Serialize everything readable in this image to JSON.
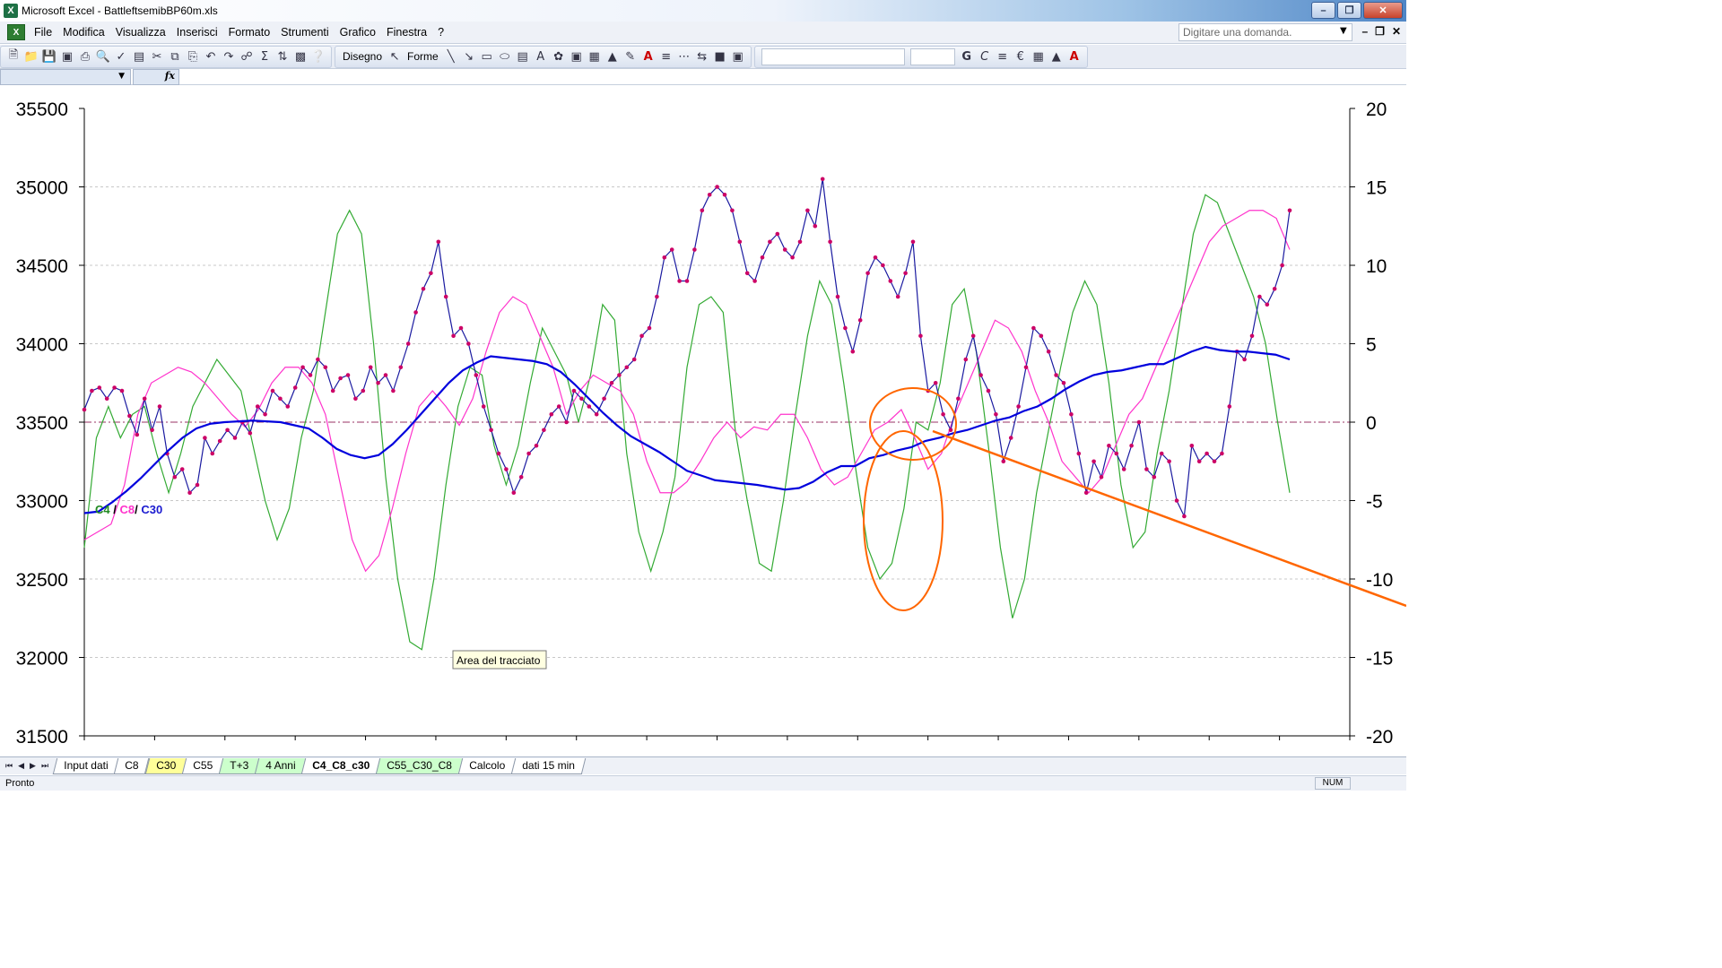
{
  "window": {
    "title": "Microsoft Excel - BattleftsemibBP60m.xls",
    "app_icon": "X"
  },
  "menu": [
    "File",
    "Modifica",
    "Visualizza",
    "Inserisci",
    "Formato",
    "Strumenti",
    "Grafico",
    "Finestra",
    "?"
  ],
  "help": {
    "placeholder": "Digitare una domanda."
  },
  "toolbar": {
    "disegno_label": "Disegno",
    "forme_label": "Forme",
    "euro": "€"
  },
  "formula_bar": {
    "fx": "fx"
  },
  "chart_data": {
    "type": "line",
    "tooltip": "Area del tracciato",
    "legend_text": {
      "c4": "C4",
      "sep1": " / ",
      "c8": "C8",
      "sep2": "/ ",
      "c30": "C30"
    },
    "y_left": {
      "min": 31500,
      "max": 35500,
      "ticks": [
        "35500",
        "35000",
        "34500",
        "34000",
        "33500",
        "33000",
        "32500",
        "32000",
        "31500"
      ]
    },
    "y_right": {
      "min": -20,
      "max": 20,
      "ticks": [
        "20",
        "15",
        "10",
        "5",
        "0",
        "-5",
        "-10",
        "-15",
        "-20"
      ]
    },
    "x_tick_count": 18,
    "grid": "horizontal dashed",
    "zero_line_color": "#993366",
    "series": [
      {
        "key": "price",
        "axis": "left",
        "color": "#1a1aa0",
        "marker_color": "#cc0066",
        "values": [
          33580,
          33700,
          33720,
          33650,
          33720,
          33700,
          33540,
          33420,
          33650,
          33450,
          33600,
          33300,
          33150,
          33200,
          33050,
          33100,
          33400,
          33300,
          33380,
          33450,
          33400,
          33500,
          33430,
          33600,
          33550,
          33700,
          33650,
          33600,
          33720,
          33850,
          33800,
          33900,
          33850,
          33700,
          33780,
          33800,
          33650,
          33700,
          33850,
          33750,
          33800,
          33700,
          33850,
          34000,
          34200,
          34350,
          34450,
          34650,
          34300,
          34050,
          34100,
          34000,
          33800,
          33600,
          33450,
          33300,
          33200,
          33050,
          33150,
          33300,
          33350,
          33450,
          33550,
          33600,
          33500,
          33700,
          33650,
          33600,
          33550,
          33650,
          33750,
          33800,
          33850,
          33900,
          34050,
          34100,
          34300,
          34550,
          34600,
          34400,
          34400,
          34600,
          34850,
          34950,
          35000,
          34950,
          34850,
          34650,
          34450,
          34400,
          34550,
          34650,
          34700,
          34600,
          34550,
          34650,
          34850,
          34750,
          35050,
          34650,
          34300,
          34100,
          33950,
          34150,
          34450,
          34550,
          34500,
          34400,
          34300,
          34450,
          34650,
          34050,
          33700,
          33750,
          33550,
          33450,
          33650,
          33900,
          34050,
          33800,
          33700,
          33550,
          33250,
          33400,
          33600,
          33850,
          34100,
          34050,
          33950,
          33800,
          33750,
          33550,
          33300,
          33050,
          33250,
          33150,
          33350,
          33300,
          33200,
          33350,
          33500,
          33200,
          33150,
          33300,
          33250,
          33000,
          32900,
          33350,
          33250,
          33300,
          33250,
          33300,
          33600,
          33950,
          33900,
          34050,
          34300,
          34250,
          34350,
          34500,
          34850
        ]
      },
      {
        "key": "c30",
        "axis": "left",
        "color": "#0000dd",
        "values": [
          32920,
          32930,
          32990,
          33060,
          33140,
          33230,
          33320,
          33400,
          33460,
          33490,
          33500,
          33505,
          33510,
          33505,
          33500,
          33480,
          33460,
          33400,
          33330,
          33290,
          33270,
          33290,
          33360,
          33450,
          33550,
          33650,
          33750,
          33830,
          33880,
          33920,
          33910,
          33900,
          33890,
          33870,
          33820,
          33740,
          33650,
          33560,
          33480,
          33410,
          33360,
          33310,
          33250,
          33190,
          33160,
          33130,
          33120,
          33110,
          33100,
          33085,
          33070,
          33080,
          33120,
          33180,
          33220,
          33220,
          33270,
          33290,
          33320,
          33340,
          33380,
          33400,
          33430,
          33450,
          33480,
          33510,
          33530,
          33570,
          33600,
          33650,
          33710,
          33760,
          33800,
          33820,
          33830,
          33850,
          33870,
          33870,
          33910,
          33950,
          33980,
          33960,
          33950,
          33950,
          33940,
          33930,
          33900
        ]
      },
      {
        "key": "c8",
        "axis": "right",
        "color": "#ff33cc",
        "values": [
          -7.5,
          -7.0,
          -6.5,
          -4.0,
          0.5,
          2.5,
          3.0,
          3.5,
          3.2,
          2.5,
          1.5,
          0.5,
          -0.3,
          0.8,
          2.5,
          3.5,
          3.5,
          2.5,
          0.5,
          -3.5,
          -7.5,
          -9.5,
          -8.5,
          -5.5,
          -2.0,
          1.0,
          2.0,
          1.0,
          -0.2,
          1.5,
          4.5,
          7.0,
          8.0,
          7.5,
          5.5,
          3.5,
          0.5,
          2.0,
          3.0,
          2.5,
          2.0,
          0.5,
          -2.5,
          -4.5,
          -4.5,
          -3.8,
          -2.5,
          -1.0,
          0.0,
          -1.0,
          -0.3,
          -0.5,
          0.5,
          0.5,
          -1.0,
          -3.0,
          -4.0,
          -3.5,
          -2.0,
          -0.5,
          0.0,
          0.8,
          -1.0,
          -3.0,
          -2.0,
          0.5,
          2.5,
          4.5,
          6.5,
          6.0,
          4.5,
          2.0,
          0.0,
          -2.5,
          -3.5,
          -4.5,
          -3.5,
          -1.5,
          0.5,
          1.5,
          3.5,
          5.5,
          7.5,
          9.5,
          11.5,
          12.5,
          13.0,
          13.5,
          13.5,
          13.0,
          11.0
        ]
      },
      {
        "key": "c4",
        "axis": "right",
        "color": "#33aa33",
        "values": [
          -8.0,
          -1.0,
          1.0,
          -1.0,
          0.5,
          1.0,
          -2.0,
          -4.5,
          -2.0,
          1.0,
          2.5,
          4.0,
          3.0,
          2.0,
          -1.5,
          -5.0,
          -7.5,
          -5.5,
          -1.0,
          2.0,
          7.0,
          12.0,
          13.5,
          12.0,
          5.0,
          -3.5,
          -10.0,
          -14.0,
          -14.5,
          -10.0,
          -4.0,
          1.0,
          3.5,
          3.0,
          -1.5,
          -4.0,
          -1.5,
          2.5,
          6.0,
          4.5,
          3.0,
          0.0,
          3.0,
          7.5,
          6.5,
          -2.0,
          -7.0,
          -9.5,
          -7.0,
          -3.5,
          3.5,
          7.5,
          8.0,
          7.0,
          -0.5,
          -5.0,
          -9.0,
          -9.5,
          -5.0,
          0.5,
          5.5,
          9.0,
          7.5,
          2.5,
          -3.0,
          -8.0,
          -10.0,
          -9.0,
          -5.5,
          0.0,
          -0.5,
          2.5,
          7.5,
          8.5,
          4.5,
          -1.5,
          -8.0,
          -12.5,
          -10.0,
          -4.5,
          -0.5,
          3.5,
          7.0,
          9.0,
          7.5,
          2.5,
          -4.0,
          -8.0,
          -7.0,
          -2.0,
          2.0,
          7.0,
          12.0,
          14.5,
          14.0,
          12.0,
          10.0,
          8.0,
          5.0,
          0.0,
          -4.5
        ]
      }
    ]
  },
  "annotations": {
    "oval_color": "#ff6600",
    "line_color": "#ff6600"
  },
  "sheet_tabs": [
    {
      "label": "Input dati",
      "style": "white"
    },
    {
      "label": "C8",
      "style": "white"
    },
    {
      "label": "C30",
      "style": "yellow"
    },
    {
      "label": "C55",
      "style": "white"
    },
    {
      "label": "T+3",
      "style": "green"
    },
    {
      "label": "4 Anni",
      "style": "green"
    },
    {
      "label": "C4_C8_c30",
      "style": "active"
    },
    {
      "label": "C55_C30_C8",
      "style": "green"
    },
    {
      "label": "Calcolo",
      "style": "white"
    },
    {
      "label": "dati 15 min",
      "style": "white"
    }
  ],
  "status": {
    "left": "Pronto",
    "num": "NUM"
  }
}
